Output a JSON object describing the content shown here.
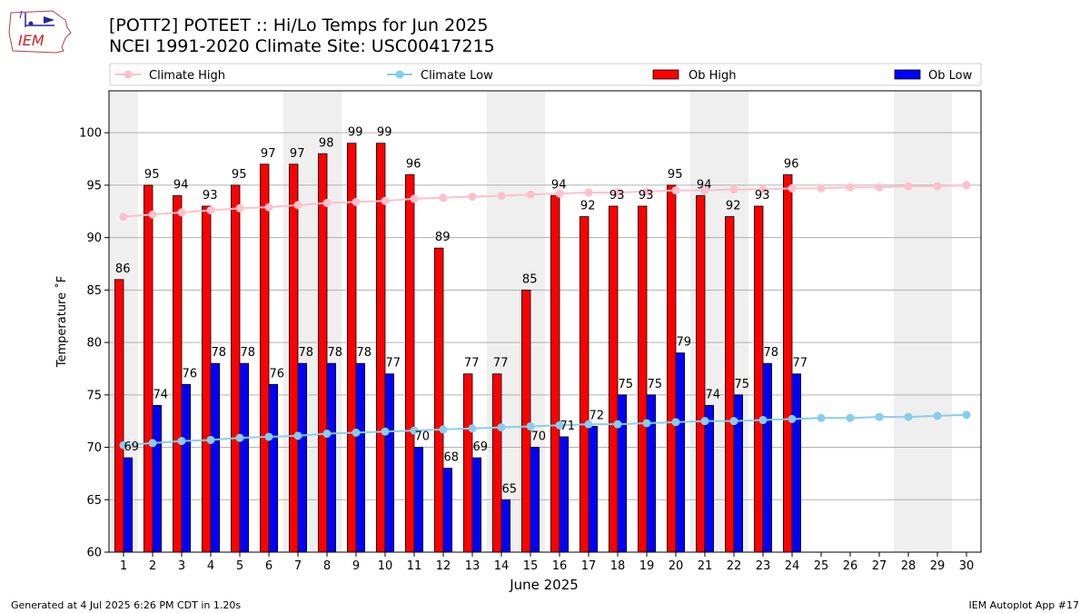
{
  "header": {
    "line1": "[POTT2] POTEET :: Hi/Lo Temps for Jun 2025",
    "line2": "NCEI 1991-2020 Climate Site: USC00417215"
  },
  "logo": {
    "text": "IEM"
  },
  "footer": {
    "left": "Generated at 4 Jul 2025 6:26 PM CDT in 1.20s",
    "right": "IEM Autoplot App #17"
  },
  "colors": {
    "ob_high": "#ff0000",
    "ob_low": "#0000ff",
    "climate_high": "#ffc0cb",
    "climate_low": "#87ceeb",
    "weekend_shade": "#efefef",
    "grid": "#b0b0b0"
  },
  "chart_data": {
    "type": "bar",
    "xlabel": "June 2025",
    "ylabel": "Temperature ˚F",
    "ylim": [
      60,
      104
    ],
    "yticks": [
      60,
      65,
      70,
      75,
      80,
      85,
      90,
      95,
      100
    ],
    "grid": "horizontal",
    "legend_position": "top",
    "days": [
      1,
      2,
      3,
      4,
      5,
      6,
      7,
      8,
      9,
      10,
      11,
      12,
      13,
      14,
      15,
      16,
      17,
      18,
      19,
      20,
      21,
      22,
      23,
      24,
      25,
      26,
      27,
      28,
      29,
      30
    ],
    "weekend_days": [
      1,
      7,
      8,
      14,
      15,
      21,
      22,
      28,
      29
    ],
    "series": [
      {
        "name": "Climate High",
        "kind": "line",
        "color": "#ffc0cb",
        "values": [
          92.0,
          92.2,
          92.4,
          92.6,
          92.8,
          92.9,
          93.1,
          93.3,
          93.4,
          93.5,
          93.7,
          93.8,
          93.9,
          94.0,
          94.1,
          94.2,
          94.3,
          94.3,
          94.4,
          94.5,
          94.5,
          94.6,
          94.6,
          94.7,
          94.7,
          94.8,
          94.8,
          94.9,
          94.9,
          95.0
        ]
      },
      {
        "name": "Climate Low",
        "kind": "line",
        "color": "#87ceeb",
        "values": [
          70.2,
          70.4,
          70.6,
          70.7,
          70.9,
          71.0,
          71.1,
          71.3,
          71.4,
          71.5,
          71.6,
          71.7,
          71.8,
          71.9,
          72.0,
          72.1,
          72.2,
          72.2,
          72.3,
          72.4,
          72.5,
          72.5,
          72.6,
          72.7,
          72.8,
          72.8,
          72.9,
          72.9,
          73.0,
          73.1
        ]
      },
      {
        "name": "Ob High",
        "kind": "bar",
        "color": "#ff0000",
        "values": [
          86,
          95,
          94,
          93,
          95,
          97,
          97,
          98,
          99,
          99,
          96,
          89,
          77,
          77,
          85,
          94,
          92,
          93,
          93,
          95,
          94,
          92,
          93,
          96
        ]
      },
      {
        "name": "Ob Low",
        "kind": "bar",
        "color": "#0000ff",
        "values": [
          69,
          74,
          76,
          78,
          78,
          76,
          78,
          78,
          78,
          77,
          70,
          68,
          69,
          65,
          70,
          71,
          72,
          75,
          75,
          79,
          74,
          75,
          78,
          77
        ]
      }
    ]
  }
}
